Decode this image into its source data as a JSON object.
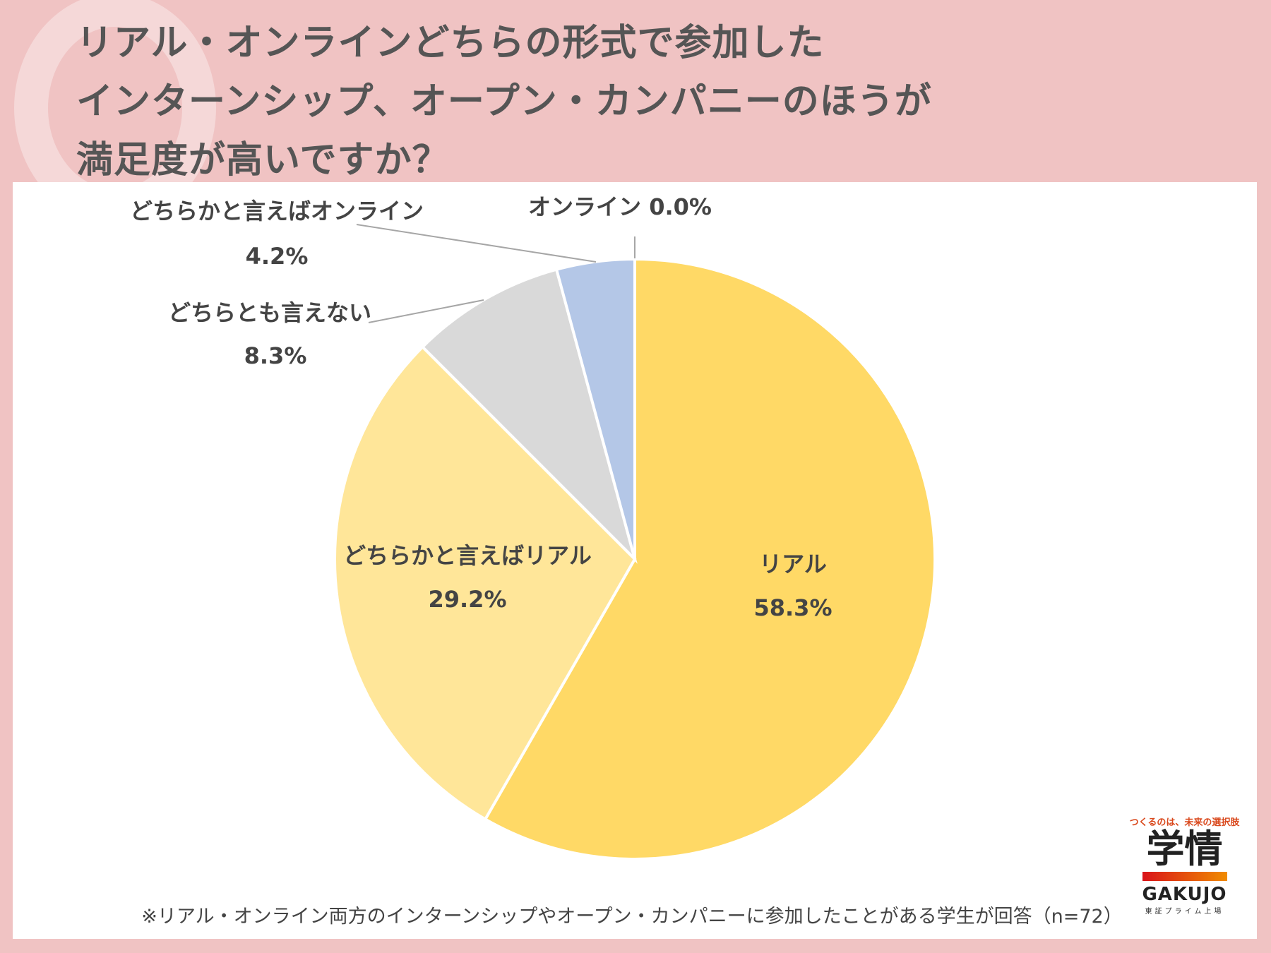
{
  "title_lines": [
    "リアル・オンラインどちらの形式で参加した",
    "インターンシップ、オープン・カンパニーのほうが",
    "満足度が高いですか？"
  ],
  "footnote": "※リアル・オンライン両方のインターンシップやオープン・カンパニーに参加したことがある学生が回答（n=72）",
  "logo": {
    "tagline": "つくるのは、未来の選択肢",
    "kanji": "学情",
    "name": "GAKUJO",
    "sub": "東証プライム上場"
  },
  "chart_data": {
    "type": "pie",
    "start": "top, clockwise",
    "categories": [
      "リアル",
      "どちらかと言えばリアル",
      "どちらとも言えない",
      "どちらかと言えばオンライン",
      "オンライン"
    ],
    "values": [
      58.3,
      29.2,
      8.3,
      4.2,
      0.0
    ],
    "labels": [
      "58.3%",
      "29.2%",
      "8.3%",
      "4.2%",
      "0.0%"
    ],
    "colors": [
      "#FFD966",
      "#FFE699",
      "#D9D9D9",
      "#B4C7E7",
      "#8FAADC"
    ]
  }
}
